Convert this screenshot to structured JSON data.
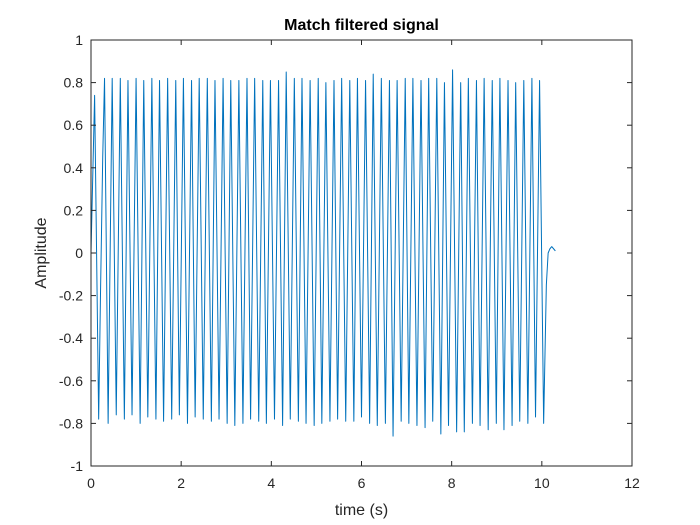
{
  "chart_data": {
    "type": "line",
    "title": "Match filtered signal",
    "xlabel": "time (s)",
    "ylabel": "Amplitude",
    "xlim": [
      0,
      12
    ],
    "ylim": [
      -1,
      1
    ],
    "xticks": [
      0,
      2,
      4,
      6,
      8,
      10,
      12
    ],
    "xtick_labels": [
      "0",
      "2",
      "4",
      "6",
      "8",
      "10",
      "12"
    ],
    "yticks": [
      -1,
      -0.8,
      -0.6,
      -0.4,
      -0.2,
      0,
      0.2,
      0.4,
      0.6,
      0.8,
      1
    ],
    "ytick_labels": [
      "-1",
      "-0.8",
      "-0.6",
      "-0.4",
      "-0.2",
      "0",
      "0.2",
      "0.4",
      "0.6",
      "0.8",
      "1"
    ],
    "grid": false,
    "legend": "none",
    "series": [
      {
        "color": "#0072BD",
        "x": [
          0.0,
          0.08,
          0.17,
          0.21,
          0.26,
          0.3,
          0.38,
          0.47,
          0.56,
          0.65,
          0.74,
          0.82,
          0.91,
          1.0,
          1.09,
          1.17,
          1.26,
          1.35,
          1.44,
          1.52,
          1.61,
          1.7,
          1.79,
          1.88,
          1.96,
          2.05,
          2.14,
          2.23,
          2.31,
          2.4,
          2.49,
          2.58,
          2.67,
          2.75,
          2.84,
          2.93,
          3.02,
          3.1,
          3.19,
          3.28,
          3.37,
          3.46,
          3.54,
          3.63,
          3.72,
          3.81,
          3.89,
          3.98,
          4.07,
          4.16,
          4.25,
          4.33,
          4.42,
          4.51,
          4.6,
          4.68,
          4.77,
          4.86,
          4.95,
          5.04,
          5.12,
          5.21,
          5.3,
          5.39,
          5.47,
          5.56,
          5.65,
          5.74,
          5.83,
          5.91,
          6.0,
          6.09,
          6.18,
          6.26,
          6.35,
          6.44,
          6.53,
          6.62,
          6.7,
          6.79,
          6.88,
          6.97,
          7.05,
          7.14,
          7.23,
          7.32,
          7.41,
          7.49,
          7.58,
          7.67,
          7.76,
          7.84,
          7.93,
          8.02,
          8.11,
          8.2,
          8.28,
          8.37,
          8.46,
          8.55,
          8.63,
          8.72,
          8.81,
          8.9,
          8.99,
          9.07,
          9.16,
          9.25,
          9.34,
          9.42,
          9.51,
          9.6,
          9.69,
          9.78,
          9.86,
          9.95,
          10.04,
          10.1,
          10.14,
          10.18,
          10.22,
          10.26,
          10.3
        ],
        "y": [
          0.0,
          0.74,
          -0.78,
          -0.2,
          0.45,
          0.82,
          -0.8,
          0.82,
          -0.76,
          0.82,
          -0.78,
          0.81,
          -0.76,
          0.82,
          -0.8,
          0.81,
          -0.77,
          0.82,
          -0.78,
          0.81,
          -0.79,
          0.82,
          -0.78,
          0.81,
          -0.76,
          0.82,
          -0.8,
          0.81,
          -0.77,
          0.82,
          -0.78,
          0.82,
          -0.79,
          0.81,
          -0.78,
          0.82,
          -0.8,
          0.81,
          -0.81,
          0.81,
          -0.8,
          0.82,
          -0.78,
          0.82,
          -0.79,
          0.81,
          -0.8,
          0.81,
          -0.78,
          0.81,
          -0.81,
          0.85,
          -0.78,
          0.82,
          -0.79,
          0.82,
          -0.8,
          0.81,
          -0.81,
          0.82,
          -0.8,
          0.8,
          -0.79,
          0.81,
          -0.78,
          0.82,
          -0.79,
          0.81,
          -0.79,
          0.82,
          -0.77,
          0.81,
          -0.8,
          0.84,
          -0.81,
          0.82,
          -0.8,
          0.81,
          -0.86,
          0.81,
          -0.79,
          0.82,
          -0.8,
          0.82,
          -0.81,
          0.81,
          -0.82,
          0.82,
          -0.79,
          0.82,
          -0.85,
          0.8,
          -0.81,
          0.86,
          -0.84,
          0.8,
          -0.84,
          0.82,
          -0.8,
          0.81,
          -0.81,
          0.82,
          -0.83,
          0.81,
          -0.8,
          0.82,
          -0.83,
          0.81,
          -0.81,
          0.8,
          -0.79,
          0.81,
          -0.8,
          0.82,
          -0.77,
          0.81,
          -0.8,
          -0.15,
          0.0,
          0.02,
          0.03,
          0.02,
          0.01
        ]
      }
    ]
  }
}
